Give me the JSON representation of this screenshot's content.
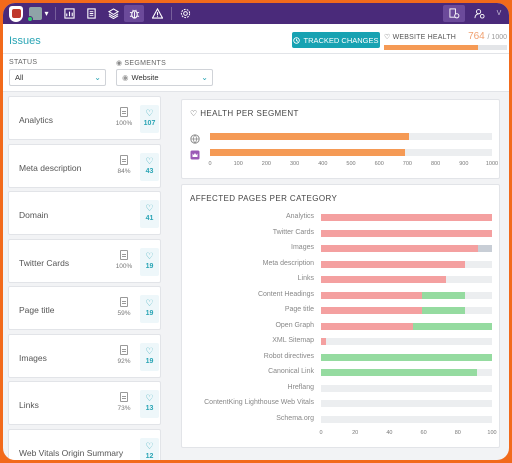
{
  "header": {
    "title": "Issues",
    "tracked_changes": "TRACKED CHANGES",
    "website_health_label": "WEBSITE HEALTH",
    "health_score": "764",
    "health_max": "/ 1000",
    "health_fraction": 0.764
  },
  "topbar": {
    "user_initial": "V",
    "icons": [
      "logo-icon",
      "project-switcher",
      "dashboard-icon",
      "pages-icon",
      "layers-icon",
      "bug-icon",
      "alert-icon",
      "settings-icon",
      "org-settings-icon",
      "user-settings-icon"
    ]
  },
  "filters": {
    "status_label": "STATUS",
    "status_value": "All",
    "segments_label": "SEGMENTS",
    "segments_value": "Website"
  },
  "categories": [
    {
      "name": "Analytics",
      "pages": "100%",
      "points": "107"
    },
    {
      "name": "Meta description",
      "pages": "84%",
      "points": "43"
    },
    {
      "name": "Domain",
      "pages": "",
      "points": "41"
    },
    {
      "name": "Twitter Cards",
      "pages": "100%",
      "points": "19"
    },
    {
      "name": "Page title",
      "pages": "59%",
      "points": "19"
    },
    {
      "name": "Images",
      "pages": "92%",
      "points": "19"
    },
    {
      "name": "Links",
      "pages": "73%",
      "points": "13"
    },
    {
      "name": "Web Vitals Origin Summary",
      "pages": "",
      "points": "12"
    }
  ],
  "chart_data": [
    {
      "type": "bar",
      "title": "HEALTH PER SEGMENT",
      "orientation": "horizontal",
      "categories": [
        "globe",
        "segment"
      ],
      "values": [
        705,
        690
      ],
      "xlim": [
        0,
        1000
      ],
      "xticks": [
        "0",
        "100",
        "200",
        "300",
        "400",
        "500",
        "600",
        "700",
        "800",
        "900",
        "1000"
      ],
      "color": "#f59a55"
    },
    {
      "type": "bar",
      "title": "AFFECTED PAGES PER CATEGORY",
      "orientation": "horizontal",
      "stacked": true,
      "categories": [
        "Analytics",
        "Twitter Cards",
        "Images",
        "Meta description",
        "Links",
        "Content Headings",
        "Page title",
        "Open Graph",
        "XML Sitemap",
        "Robot directives",
        "Canonical Link",
        "Hreflang",
        "ContentKing Lighthouse Web Vitals",
        "Schema.org"
      ],
      "series": [
        {
          "color": "#f4a0a0",
          "values": [
            100,
            100,
            92,
            84,
            73,
            59,
            59,
            54,
            3,
            0,
            0,
            0,
            0,
            0
          ]
        },
        {
          "color": "#95dba0",
          "values": [
            0,
            0,
            0,
            0,
            0,
            25,
            25,
            46,
            0,
            100,
            91,
            0,
            0,
            0
          ]
        },
        {
          "color": "#c8ced6",
          "values": [
            0,
            0,
            8,
            0,
            0,
            0,
            0,
            0,
            0,
            0,
            0,
            0,
            0,
            0
          ]
        }
      ],
      "xlim": [
        0,
        100
      ],
      "xticks": [
        "0",
        "20",
        "40",
        "60",
        "80",
        "100"
      ]
    }
  ]
}
